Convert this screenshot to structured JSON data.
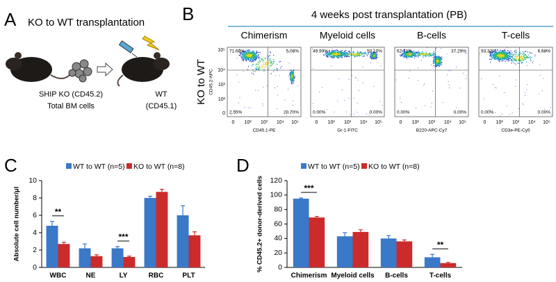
{
  "panel_a": {
    "label": "A",
    "title": "KO to WT transplantation",
    "donor": [
      "SHIP KO (CD45.2)",
      "Total BM cells"
    ],
    "recipient": [
      "WT",
      "(CD45.1)"
    ]
  },
  "panel_b": {
    "label": "B",
    "title": "4 weeks post transplantation (PB)",
    "row_label": "KO to WT",
    "y_axis_label": "CD45.2-APC",
    "y_ticks": [
      "10⁵",
      "10⁴",
      "10³",
      "10²",
      "0"
    ],
    "x_ticks": [
      "0",
      "10²",
      "10³",
      "10⁴",
      "10⁵"
    ],
    "plots": [
      {
        "title": "Chimerism",
        "x_axis_label": "CD45.1-PE",
        "quadrants": [
          "71.68%",
          "5.08%",
          "2.55%",
          "20.70%"
        ]
      },
      {
        "title": "Myeloid cells",
        "x_axis_label": "Gr-1-FITC",
        "quadrants": [
          "49.90%",
          "50.10%",
          "0.00%",
          "0.00%"
        ]
      },
      {
        "title": "B-cells",
        "x_axis_label": "B220-APC-Cy7",
        "quadrants": [
          "62.71%",
          "37.29%",
          "0.00%",
          "0.00%"
        ]
      },
      {
        "title": "T-cells",
        "x_axis_label": "CD3e-PE-Cy5",
        "quadrants": [
          "93.32%",
          "6.68%",
          "0.00%",
          "0.00%"
        ]
      }
    ]
  },
  "chart_data": [
    {
      "type": "bar",
      "panel_label": "C",
      "y_axis_label": "Absolute cell number/μl",
      "categories": [
        "WBC",
        "NE",
        "LY",
        "RBC",
        "PLT"
      ],
      "series": [
        {
          "name": "WT to WT (n=5)",
          "color": "#3a78c8",
          "values": [
            4.8,
            2.2,
            2.2,
            8.0,
            6.0
          ],
          "errors": [
            0.5,
            0.5,
            0.2,
            0.2,
            1.1
          ]
        },
        {
          "name": "KO to WT (n=8)",
          "color": "#cc2b2b",
          "values": [
            2.7,
            1.3,
            1.2,
            8.7,
            3.7
          ],
          "errors": [
            0.2,
            0.15,
            0.1,
            0.3,
            0.4
          ]
        }
      ],
      "ylim": [
        0,
        10
      ],
      "yticks": [
        0,
        2,
        4,
        6,
        8,
        10
      ],
      "annotations": [
        {
          "category": "WBC",
          "text": "**"
        },
        {
          "category": "LY",
          "text": "***"
        }
      ]
    },
    {
      "type": "bar",
      "panel_label": "D",
      "y_axis_label": "% CD45.2+ donor-derived cells",
      "categories": [
        "Chimerism",
        "Myeloid cells",
        "B-cells",
        "T-cells"
      ],
      "series": [
        {
          "name": "WT to WT (n=5)",
          "color": "#3a78c8",
          "values": [
            95,
            43,
            40,
            14
          ],
          "errors": [
            1,
            5,
            4,
            4
          ]
        },
        {
          "name": "KO to WT (n=8)",
          "color": "#cc2b2b",
          "values": [
            69,
            49,
            36,
            6
          ],
          "errors": [
            1.5,
            3,
            2,
            1
          ]
        }
      ],
      "ylim": [
        0,
        120
      ],
      "yticks": [
        0,
        20,
        40,
        60,
        80,
        100,
        120
      ],
      "annotations": [
        {
          "category": "Chimerism",
          "text": "***"
        },
        {
          "category": "T-cells",
          "text": "**"
        }
      ]
    }
  ]
}
